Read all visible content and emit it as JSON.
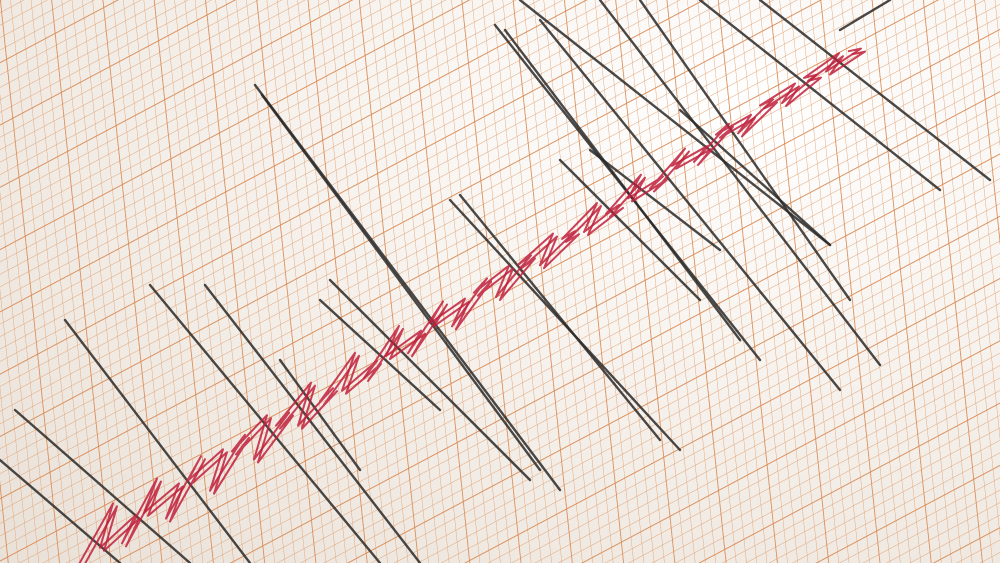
{
  "image": {
    "subject": "seismograph-trace",
    "colors": {
      "paper": "#f6f1ec",
      "grid": "#e0a070",
      "grid_major": "#d98850",
      "trace_black": "#2a2a2a",
      "trace_red": "#c0203c"
    }
  }
}
